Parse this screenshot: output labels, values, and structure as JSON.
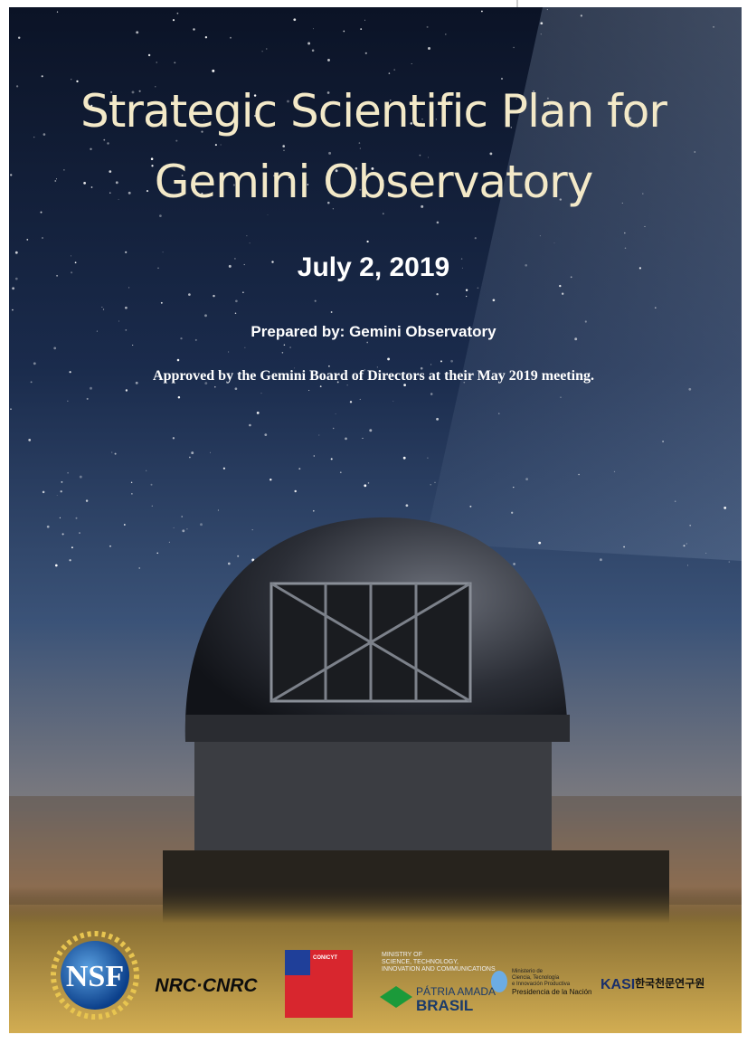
{
  "cover": {
    "title": [
      "Strategic Scientific Plan for",
      "Gemini Observatory"
    ],
    "date": "July 2, 2019",
    "prepared_by": "Prepared by: Gemini Observatory",
    "approval": "Approved by the Gemini Board of Directors at their May 2019 meeting."
  },
  "logos": {
    "nsf": "NSF",
    "nrc": "NRC·CNRC",
    "chile": "CONICYT",
    "brazil_ministry": [
      "MINISTRY OF",
      "SCIENCE, TECHNOLOGY,",
      "INNOVATION AND COMMUNICATIONS"
    ],
    "brazil_motto": [
      "PÁTRIA AMADA",
      "BRASIL"
    ],
    "argentina": [
      "Ministerio de",
      "Ciencia, Tecnología",
      "e Innovación Productiva",
      "Presidencia de la Nación"
    ],
    "kasi": "KASI",
    "kasi_korean": "한국천문연구원"
  }
}
